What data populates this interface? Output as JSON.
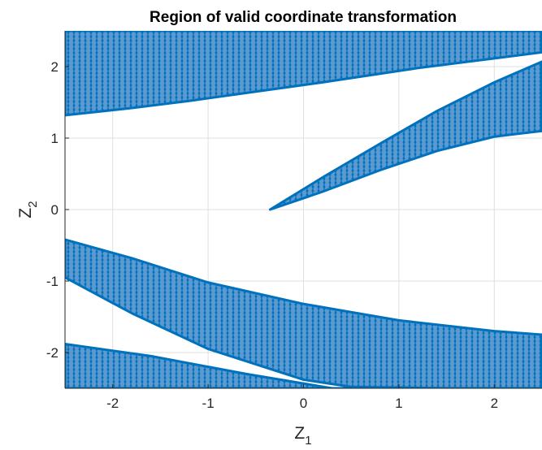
{
  "chart_data": {
    "type": "scatter",
    "title": "Region of valid coordinate transformation",
    "xlabel": {
      "main": "Z",
      "sub": "1"
    },
    "ylabel": {
      "main": "Z",
      "sub": "2"
    },
    "xlim": [
      -2.5,
      2.5
    ],
    "ylim": [
      -2.5,
      2.5
    ],
    "xticks": [
      -2,
      -1,
      0,
      1,
      2
    ],
    "yticks": [
      -2,
      -1,
      0,
      1,
      2
    ],
    "xtick_labels": [
      "-2",
      "-1",
      "0",
      "1",
      "2"
    ],
    "ytick_labels": [
      "-2",
      "-1",
      "0",
      "1",
      "2"
    ],
    "grid": true,
    "marker": "open-circle",
    "color": "#0072BD",
    "regions": [
      {
        "name": "top band",
        "x_range": [
          -2.5,
          2.5
        ],
        "upper": [
          [
            -2.5,
            2.5
          ],
          [
            2.5,
            2.5
          ]
        ],
        "lower": [
          [
            -2.5,
            1.32
          ],
          [
            -1.8,
            1.42
          ],
          [
            -1.2,
            1.52
          ],
          [
            0.2,
            1.78
          ],
          [
            1.2,
            1.98
          ],
          [
            2.5,
            2.2
          ]
        ]
      },
      {
        "name": "central wedge",
        "x_range": [
          -0.35,
          2.5
        ],
        "upper": [
          [
            -0.35,
            0.0
          ],
          [
            0.2,
            0.45
          ],
          [
            0.8,
            0.92
          ],
          [
            1.4,
            1.38
          ],
          [
            2.0,
            1.78
          ],
          [
            2.5,
            2.07
          ]
        ],
        "lower": [
          [
            -0.35,
            0.0
          ],
          [
            0.2,
            0.25
          ],
          [
            0.8,
            0.55
          ],
          [
            1.4,
            0.82
          ],
          [
            2.0,
            1.02
          ],
          [
            2.5,
            1.1
          ]
        ]
      },
      {
        "name": "lower band",
        "x_range": [
          -2.5,
          2.5
        ],
        "upper": [
          [
            -2.5,
            -0.42
          ],
          [
            -1.8,
            -0.68
          ],
          [
            -1.0,
            -1.02
          ],
          [
            0.0,
            -1.32
          ],
          [
            1.0,
            -1.55
          ],
          [
            2.0,
            -1.7
          ],
          [
            2.5,
            -1.75
          ]
        ],
        "lower": [
          [
            -2.5,
            -0.95
          ],
          [
            -1.8,
            -1.45
          ],
          [
            -1.0,
            -1.95
          ],
          [
            0.0,
            -2.38
          ],
          [
            0.5,
            -2.48
          ],
          [
            1.5,
            -2.5
          ],
          [
            2.5,
            -2.5
          ]
        ]
      },
      {
        "name": "bottom band",
        "x_range": [
          -2.5,
          2.5
        ],
        "upper": [
          [
            -2.5,
            -1.88
          ],
          [
            -1.6,
            -2.05
          ],
          [
            -0.6,
            -2.3
          ],
          [
            0.3,
            -2.5
          ],
          [
            2.5,
            -2.5
          ]
        ],
        "lower": [
          [
            -2.5,
            -2.5
          ],
          [
            2.5,
            -2.5
          ]
        ]
      }
    ]
  }
}
